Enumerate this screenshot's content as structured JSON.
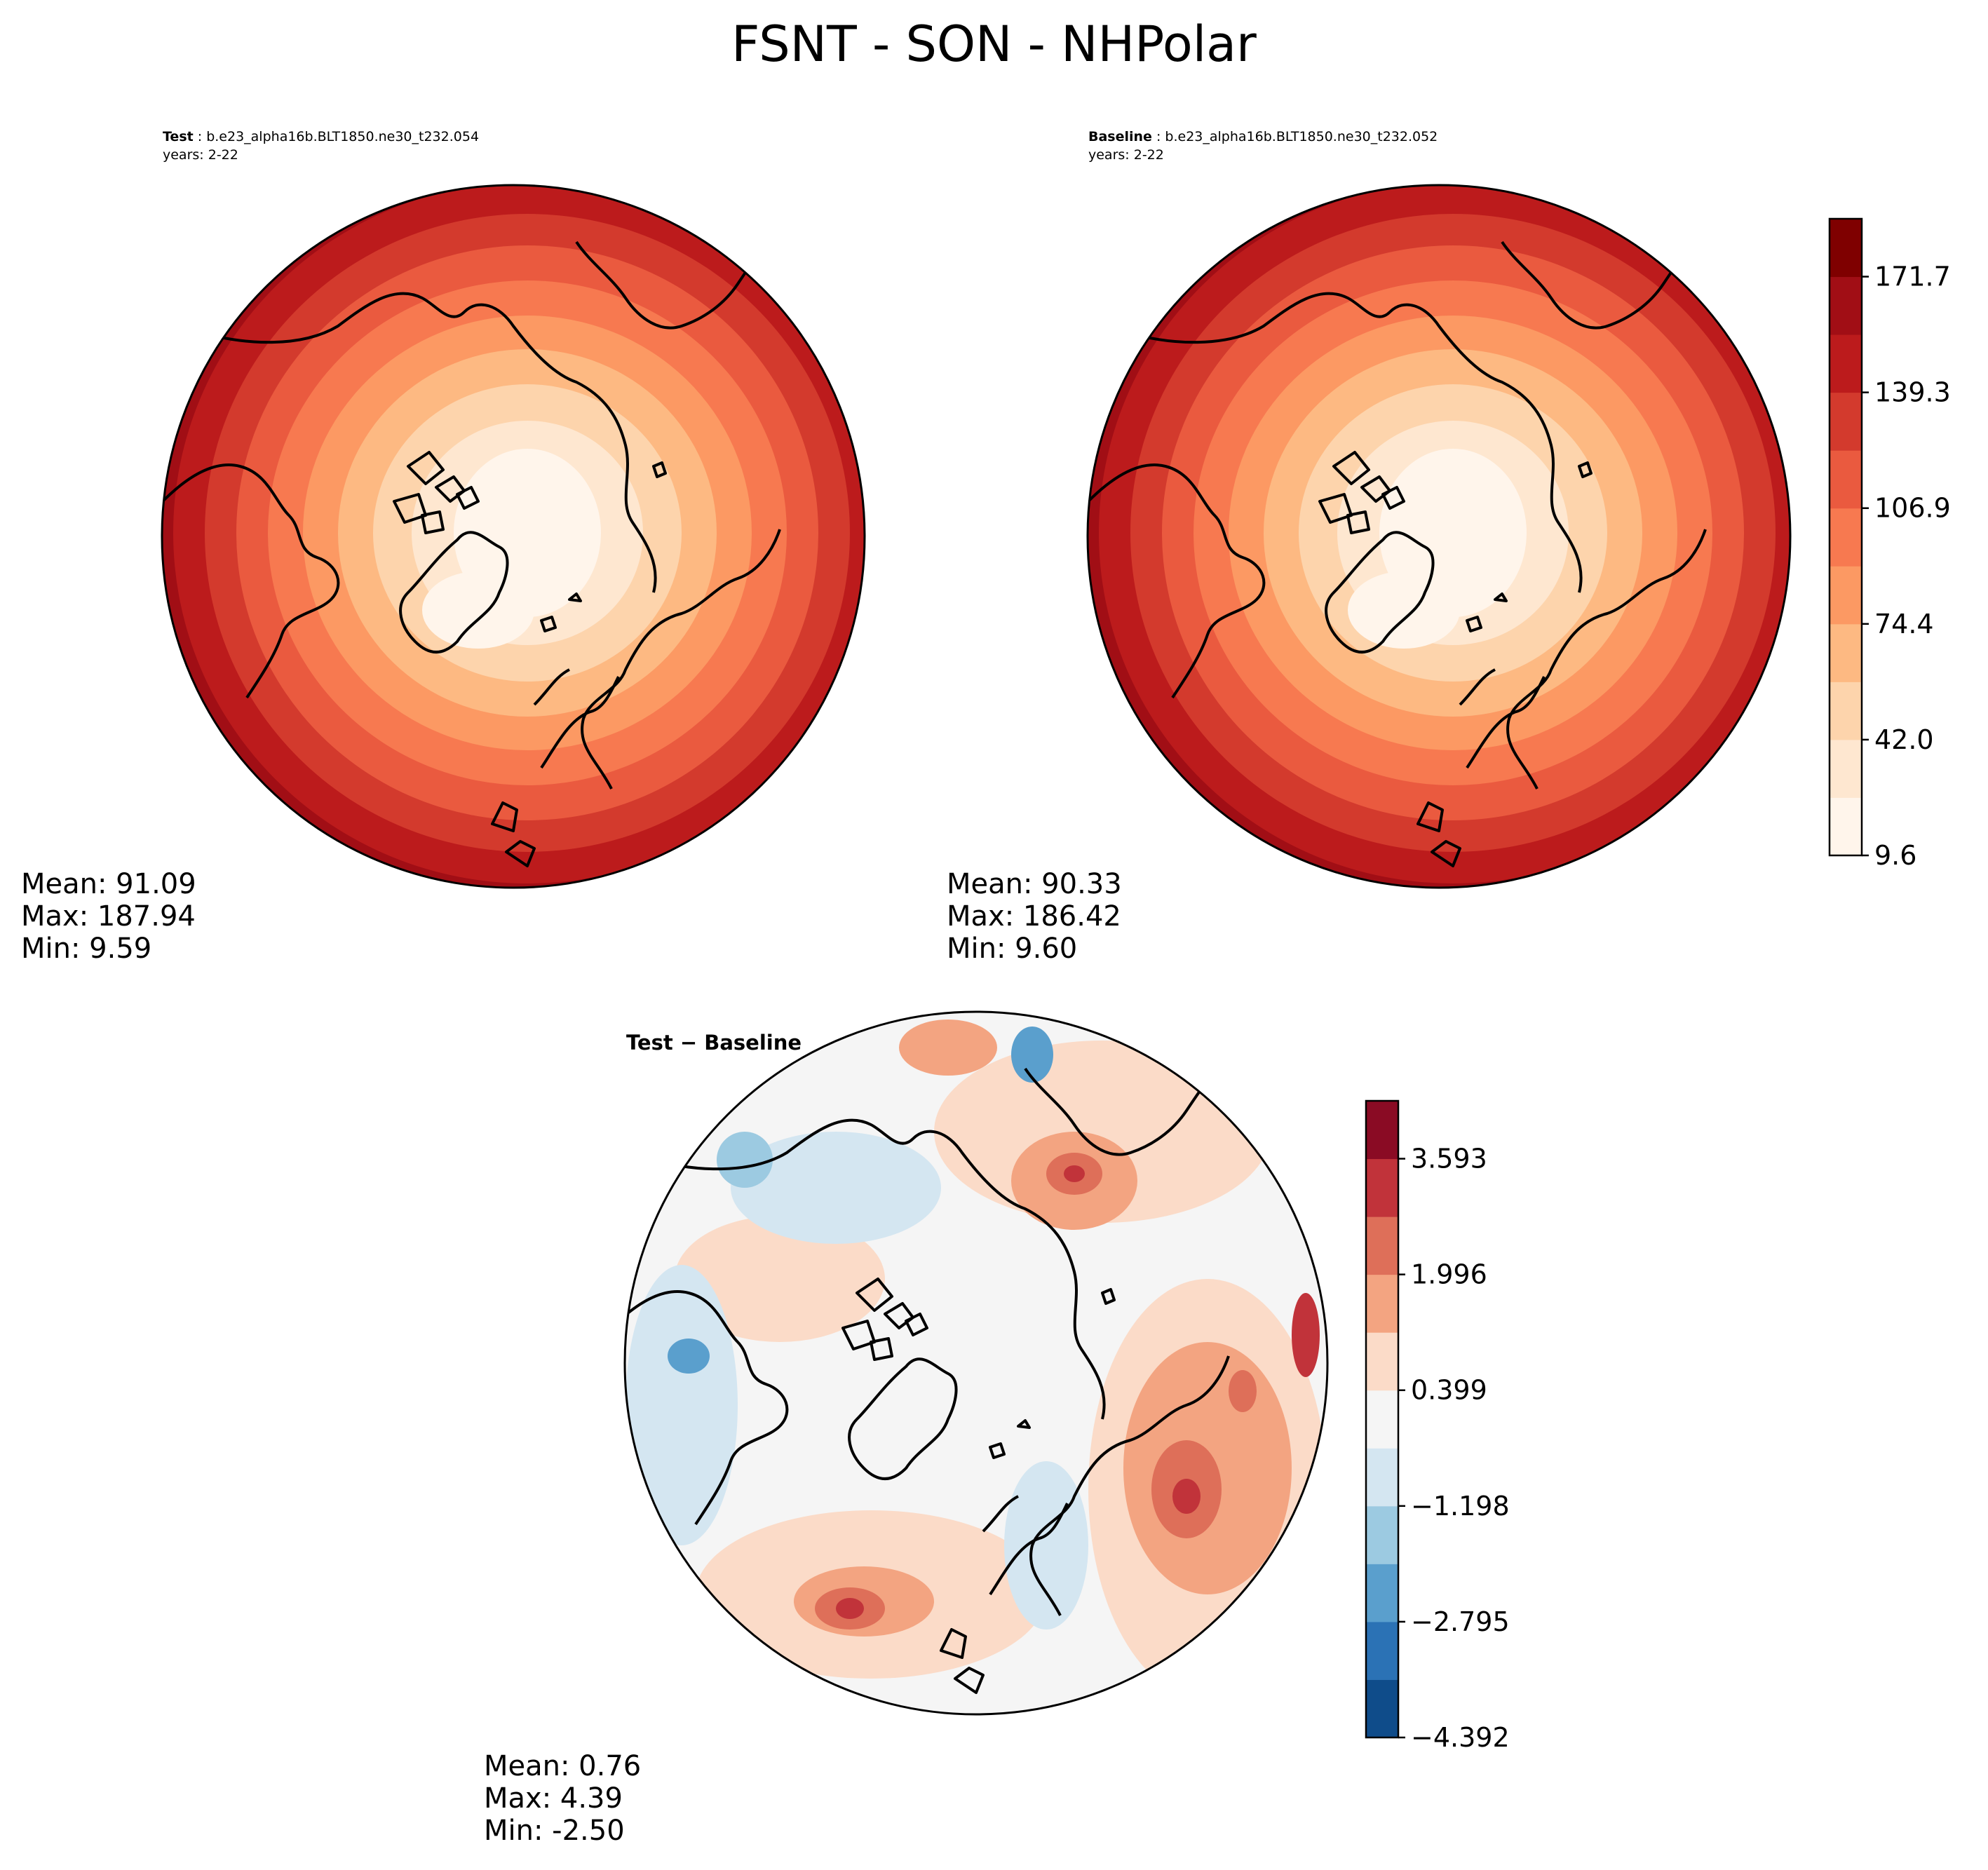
{
  "figure": {
    "title": "FSNT - SON - NHPolar"
  },
  "panels": [
    {
      "id": "test",
      "title_bold": "Test",
      "title_rest": " : b.e23_alpha16b.BLT1850.ne30_t232.054",
      "years": "years: 2-22",
      "stats": {
        "mean": "Mean: 91.09",
        "max": "Max: 187.94",
        "min": "Min:  9.59"
      }
    },
    {
      "id": "baseline",
      "title_bold": "Baseline",
      "title_rest": " : b.e23_alpha16b.BLT1850.ne30_t232.052",
      "years": "years: 2-22",
      "stats": {
        "mean": "Mean: 90.33",
        "max": "Max: 186.42",
        "min": "Min:  9.60"
      }
    },
    {
      "id": "diff",
      "title": "Test − Baseline",
      "stats": {
        "mean": "Mean:  0.76",
        "max": "Max:  4.39",
        "min": "Min: -2.50"
      }
    }
  ],
  "colorbars": {
    "main": {
      "colors": [
        "#fff5eb",
        "#fee7d0",
        "#fdd4ac",
        "#fdb982",
        "#fc9963",
        "#f77950",
        "#ea5a3f",
        "#d33a2d",
        "#bc1b1c",
        "#a10e15",
        "#7f0000"
      ],
      "tick_labels": [
        "9.6",
        "42.0",
        "74.4",
        "106.9",
        "139.3",
        "171.7"
      ]
    },
    "diff": {
      "colors": [
        "#0f4c8a",
        "#2b72b5",
        "#5a9fcd",
        "#9ccae1",
        "#d4e6f1",
        "#f5f5f5",
        "#fbdbc8",
        "#f3a481",
        "#de6f59",
        "#c1333a",
        "#8a0b24"
      ],
      "tick_labels": [
        "−4.392",
        "−2.795",
        "−1.198",
        "0.399",
        "1.996",
        "3.593"
      ]
    }
  }
}
